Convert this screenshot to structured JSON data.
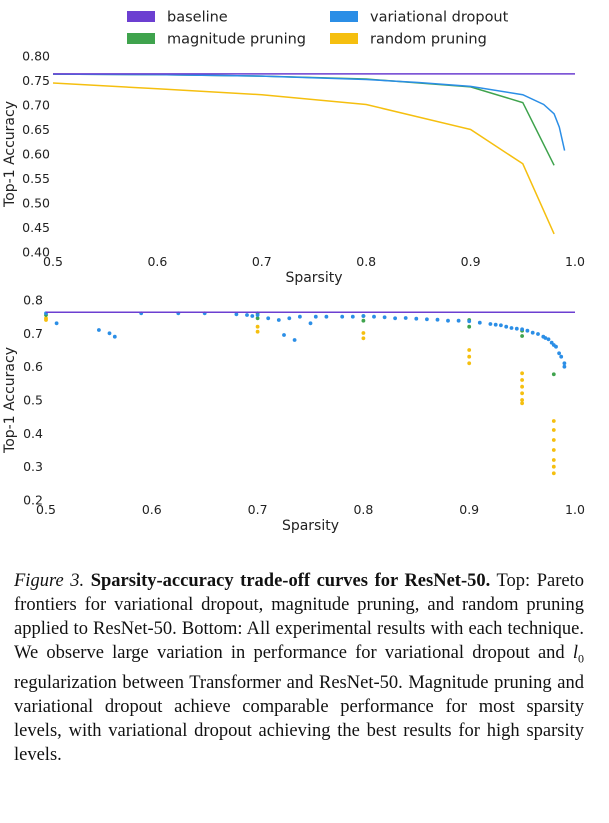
{
  "colors": {
    "baseline": "#6c3fd1",
    "variational_dropout": "#2b8ee6",
    "magnitude_pruning": "#3fa34d",
    "random_pruning": "#f5bf0f"
  },
  "legend": [
    {
      "key": "baseline",
      "label": "baseline"
    },
    {
      "key": "variational_dropout",
      "label": "variational dropout"
    },
    {
      "key": "magnitude_pruning",
      "label": "magnitude pruning"
    },
    {
      "key": "random_pruning",
      "label": "random pruning"
    }
  ],
  "chart_data": [
    {
      "type": "line",
      "xlabel": "Sparsity",
      "ylabel": "Top-1 Accuracy",
      "xlim": [
        0.5,
        1.0
      ],
      "ylim": [
        0.4,
        0.8
      ],
      "xticks": [
        "0.5",
        "0.6",
        "0.7",
        "0.8",
        "0.9",
        "1.0"
      ],
      "yticks": [
        "0.40",
        "0.45",
        "0.50",
        "0.55",
        "0.60",
        "0.65",
        "0.70",
        "0.75",
        "0.80"
      ],
      "grid": false,
      "legend_position": "top",
      "series": [
        {
          "name": "baseline",
          "key": "baseline",
          "points": [
            [
              0.5,
              0.7635
            ],
            [
              1.0,
              0.7635
            ]
          ]
        },
        {
          "name": "variational dropout",
          "key": "variational_dropout",
          "points": [
            [
              0.5,
              0.763
            ],
            [
              0.6,
              0.762
            ],
            [
              0.7,
              0.759
            ],
            [
              0.8,
              0.752
            ],
            [
              0.85,
              0.746
            ],
            [
              0.9,
              0.738
            ],
            [
              0.95,
              0.721
            ],
            [
              0.97,
              0.701
            ],
            [
              0.98,
              0.682
            ],
            [
              0.985,
              0.655
            ],
            [
              0.99,
              0.607
            ]
          ]
        },
        {
          "name": "magnitude pruning",
          "key": "magnitude_pruning",
          "points": [
            [
              0.5,
              0.763
            ],
            [
              0.6,
              0.762
            ],
            [
              0.7,
              0.759
            ],
            [
              0.8,
              0.753
            ],
            [
              0.9,
              0.737
            ],
            [
              0.95,
              0.705
            ],
            [
              0.98,
              0.577
            ]
          ]
        },
        {
          "name": "random pruning",
          "key": "random_pruning",
          "points": [
            [
              0.5,
              0.745
            ],
            [
              0.6,
              0.733
            ],
            [
              0.7,
              0.721
            ],
            [
              0.8,
              0.701
            ],
            [
              0.9,
              0.65
            ],
            [
              0.95,
              0.58
            ],
            [
              0.98,
              0.437
            ]
          ]
        }
      ]
    },
    {
      "type": "scatter",
      "xlabel": "Sparsity",
      "ylabel": "Top-1 Accuracy",
      "xlim": [
        0.5,
        1.0
      ],
      "ylim": [
        0.2,
        0.8
      ],
      "xticks": [
        "0.5",
        "0.6",
        "0.7",
        "0.8",
        "0.9",
        "1.0"
      ],
      "yticks": [
        "0.2",
        "0.3",
        "0.4",
        "0.5",
        "0.6",
        "0.7",
        "0.8"
      ],
      "grid": false,
      "series": [
        {
          "name": "baseline",
          "key": "baseline",
          "points": [
            [
              0.5,
              0.7635
            ],
            [
              1.0,
              0.7635
            ]
          ]
        },
        {
          "name": "variational dropout",
          "key": "variational_dropout",
          "points": [
            [
              0.5,
              0.76
            ],
            [
              0.51,
              0.73
            ],
            [
              0.55,
              0.71
            ],
            [
              0.56,
              0.7
            ],
            [
              0.565,
              0.69
            ],
            [
              0.59,
              0.76
            ],
            [
              0.625,
              0.76
            ],
            [
              0.65,
              0.76
            ],
            [
              0.68,
              0.757
            ],
            [
              0.69,
              0.755
            ],
            [
              0.695,
              0.752
            ],
            [
              0.7,
              0.755
            ],
            [
              0.71,
              0.745
            ],
            [
              0.72,
              0.74
            ],
            [
              0.725,
              0.695
            ],
            [
              0.73,
              0.745
            ],
            [
              0.735,
              0.68
            ],
            [
              0.74,
              0.75
            ],
            [
              0.75,
              0.73
            ],
            [
              0.755,
              0.75
            ],
            [
              0.765,
              0.75
            ],
            [
              0.78,
              0.75
            ],
            [
              0.79,
              0.75
            ],
            [
              0.8,
              0.752
            ],
            [
              0.81,
              0.75
            ],
            [
              0.82,
              0.748
            ],
            [
              0.83,
              0.745
            ],
            [
              0.84,
              0.746
            ],
            [
              0.85,
              0.744
            ],
            [
              0.86,
              0.742
            ],
            [
              0.87,
              0.741
            ],
            [
              0.88,
              0.738
            ],
            [
              0.89,
              0.738
            ],
            [
              0.9,
              0.736
            ],
            [
              0.91,
              0.732
            ],
            [
              0.92,
              0.728
            ],
            [
              0.925,
              0.726
            ],
            [
              0.93,
              0.724
            ],
            [
              0.935,
              0.72
            ],
            [
              0.94,
              0.716
            ],
            [
              0.945,
              0.714
            ],
            [
              0.95,
              0.712
            ],
            [
              0.955,
              0.708
            ],
            [
              0.96,
              0.702
            ],
            [
              0.965,
              0.698
            ],
            [
              0.97,
              0.69
            ],
            [
              0.972,
              0.686
            ],
            [
              0.975,
              0.682
            ],
            [
              0.978,
              0.672
            ],
            [
              0.98,
              0.665
            ],
            [
              0.982,
              0.66
            ],
            [
              0.985,
              0.64
            ],
            [
              0.987,
              0.63
            ],
            [
              0.99,
              0.61
            ],
            [
              0.99,
              0.6
            ]
          ]
        },
        {
          "name": "magnitude pruning",
          "key": "magnitude_pruning",
          "points": [
            [
              0.5,
              0.755
            ],
            [
              0.7,
              0.76
            ],
            [
              0.7,
              0.745
            ],
            [
              0.8,
              0.752
            ],
            [
              0.8,
              0.738
            ],
            [
              0.9,
              0.74
            ],
            [
              0.9,
              0.72
            ],
            [
              0.95,
              0.708
            ],
            [
              0.95,
              0.692
            ],
            [
              0.98,
              0.577
            ]
          ]
        },
        {
          "name": "random pruning",
          "key": "random_pruning",
          "points": [
            [
              0.5,
              0.745
            ],
            [
              0.5,
              0.74
            ],
            [
              0.7,
              0.72
            ],
            [
              0.7,
              0.705
            ],
            [
              0.8,
              0.701
            ],
            [
              0.8,
              0.685
            ],
            [
              0.9,
              0.65
            ],
            [
              0.9,
              0.63
            ],
            [
              0.9,
              0.61
            ],
            [
              0.95,
              0.58
            ],
            [
              0.95,
              0.56
            ],
            [
              0.95,
              0.54
            ],
            [
              0.95,
              0.52
            ],
            [
              0.95,
              0.5
            ],
            [
              0.95,
              0.49
            ],
            [
              0.98,
              0.437
            ],
            [
              0.98,
              0.41
            ],
            [
              0.98,
              0.38
            ],
            [
              0.98,
              0.35
            ],
            [
              0.98,
              0.32
            ],
            [
              0.98,
              0.3
            ],
            [
              0.98,
              0.28
            ]
          ]
        }
      ]
    }
  ],
  "caption": {
    "label": "Figure 3.",
    "title": "Sparsity-accuracy trade-off curves for ResNet-50.",
    "body_part1": "Top: Pareto frontiers for variational dropout, magnitude pruning, and random pruning applied to ResNet-50. Bottom: All experimental results with each technique. We observe large variation in performance for variational dropout and ",
    "math_var": "l",
    "math_sub": "0",
    "body_part2": " regularization between Transformer and ResNet-50. Magnitude pruning and variational dropout achieve comparable performance for most sparsity levels, with variational dropout achieving the best results for high sparsity levels."
  }
}
